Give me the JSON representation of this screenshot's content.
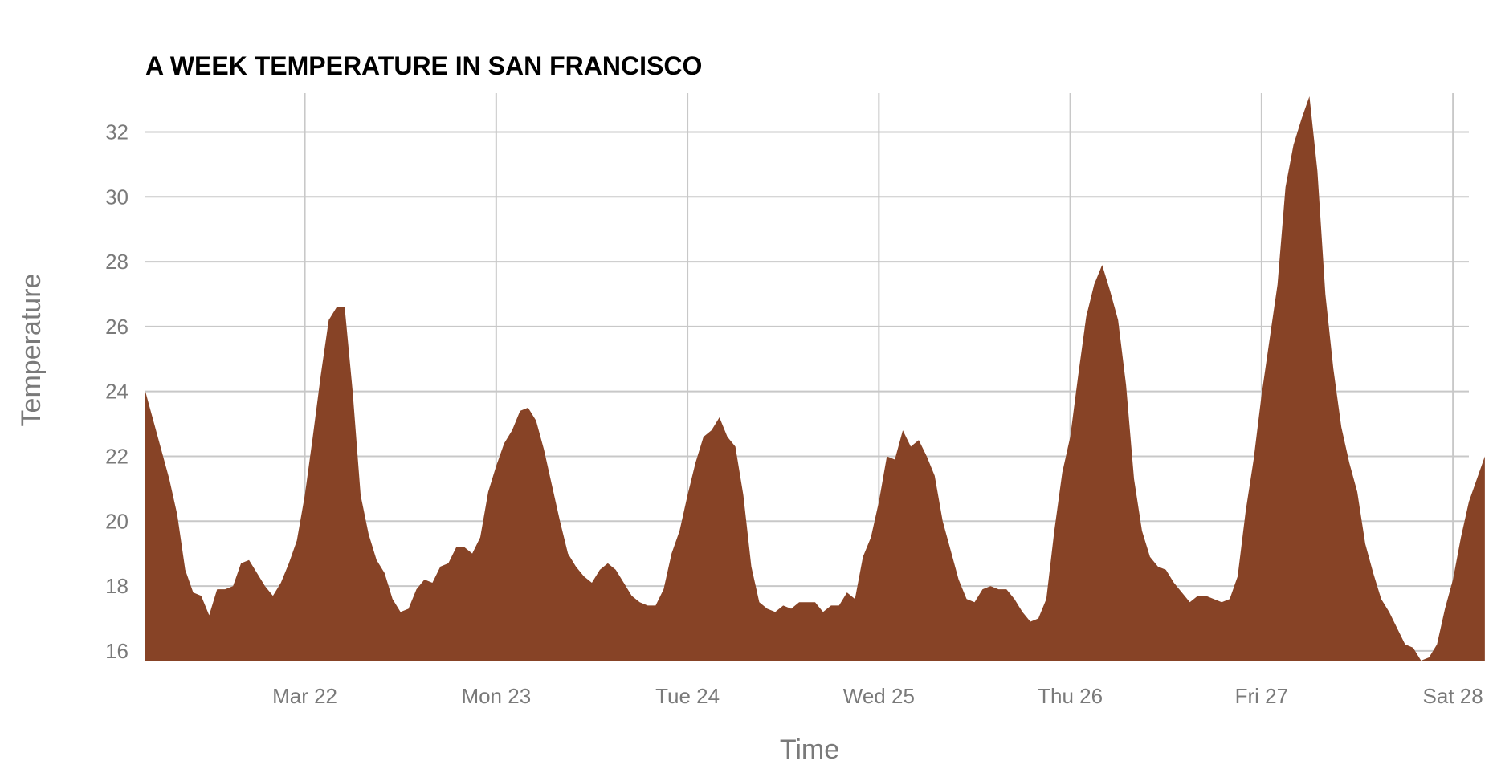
{
  "chart_data": {
    "type": "area",
    "title": "A WEEK TEMPERATURE IN SAN FRANCISCO",
    "xlabel": "Time",
    "ylabel": "Temperature",
    "ylim": [
      15.7,
      33.2
    ],
    "xlim": [
      "2020-03-21 04:00",
      "2020-03-28 02:00"
    ],
    "grid": true,
    "legend": "none",
    "color": "#874326",
    "y_ticks": [
      16,
      18,
      20,
      22,
      24,
      26,
      28,
      30,
      32
    ],
    "x_ticks": [
      {
        "at": "2020-03-22 00:00",
        "label": "Mar 22"
      },
      {
        "at": "2020-03-23 00:00",
        "label": "Mon 23"
      },
      {
        "at": "2020-03-24 00:00",
        "label": "Tue 24"
      },
      {
        "at": "2020-03-25 00:00",
        "label": "Wed 25"
      },
      {
        "at": "2020-03-26 00:00",
        "label": "Thu 26"
      },
      {
        "at": "2020-03-27 00:00",
        "label": "Fri 27"
      },
      {
        "at": "2020-03-28 00:00",
        "label": "Sat 28"
      }
    ],
    "series": [
      {
        "x_start": "2020-03-21 04:00",
        "x_step_hours": 1,
        "values": [
          24.0,
          23.1,
          22.2,
          21.3,
          20.2,
          18.5,
          17.8,
          17.7,
          17.1,
          17.9,
          17.9,
          18.0,
          18.7,
          18.8,
          18.4,
          18.0,
          17.7,
          18.1,
          18.7,
          19.4,
          20.8,
          22.6,
          24.5,
          26.2,
          26.6,
          26.6,
          24.0,
          20.8,
          19.6,
          18.8,
          18.4,
          17.6,
          17.2,
          17.3,
          17.9,
          18.2,
          18.1,
          18.6,
          18.7,
          19.2,
          19.2,
          19.0,
          19.5,
          20.9,
          21.7,
          22.4,
          22.8,
          23.4,
          23.5,
          23.1,
          22.2,
          21.1,
          20.0,
          19.0,
          18.6,
          18.3,
          18.1,
          18.5,
          18.7,
          18.5,
          18.1,
          17.7,
          17.5,
          17.4,
          17.4,
          17.9,
          19.0,
          19.7,
          20.8,
          21.8,
          22.6,
          22.8,
          23.2,
          22.6,
          22.3,
          20.8,
          18.6,
          17.5,
          17.3,
          17.2,
          17.4,
          17.3,
          17.5,
          17.5,
          17.5,
          17.2,
          17.4,
          17.4,
          17.8,
          17.6,
          18.9,
          19.5,
          20.6,
          22.0,
          21.9,
          22.8,
          22.3,
          22.5,
          22.0,
          21.4,
          20.0,
          19.1,
          18.2,
          17.6,
          17.5,
          17.9,
          18.0,
          17.9,
          17.9,
          17.6,
          17.2,
          16.9,
          17.0,
          17.6,
          19.7,
          21.5,
          22.6,
          24.5,
          26.3,
          27.3,
          27.9,
          27.1,
          26.2,
          24.2,
          21.3,
          19.7,
          18.9,
          18.6,
          18.5,
          18.1,
          17.8,
          17.5,
          17.7,
          17.7,
          17.6,
          17.5,
          17.6,
          18.3,
          20.3,
          21.9,
          23.9,
          25.6,
          27.3,
          30.3,
          31.6,
          32.4,
          33.1,
          30.8,
          27.0,
          24.7,
          22.9,
          21.8,
          20.9,
          19.3,
          18.4,
          17.6,
          17.2,
          16.7,
          16.2,
          16.1,
          15.7,
          15.8,
          16.2,
          17.3,
          18.2,
          19.5,
          20.6,
          21.3,
          22.0
        ]
      }
    ]
  }
}
